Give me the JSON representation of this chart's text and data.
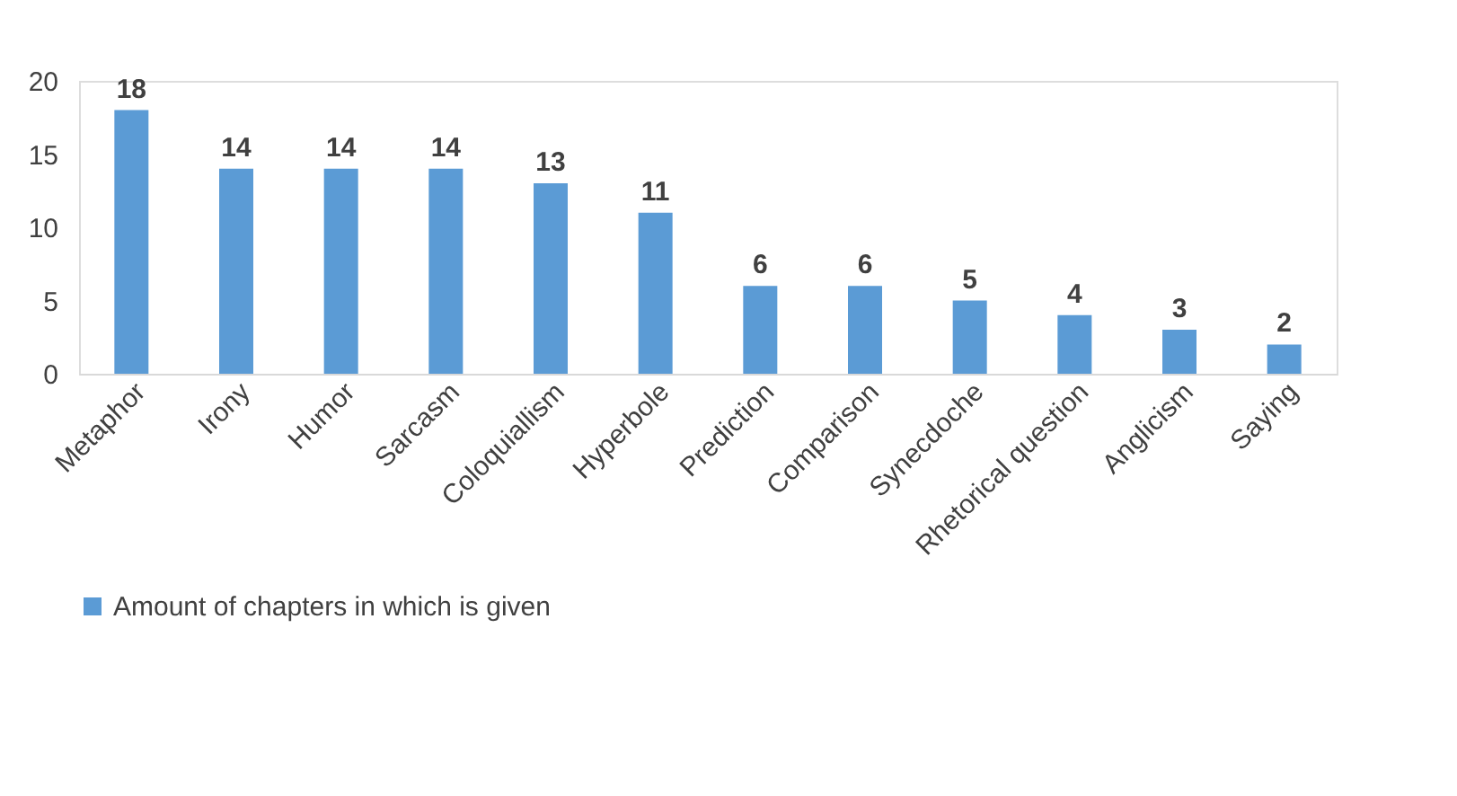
{
  "chart_data": {
    "type": "bar",
    "categories": [
      "Metaphor",
      "Irony",
      "Humor",
      "Sarcasm",
      "Coloquiallism",
      "Hyperbole",
      "Prediction",
      "Comparison",
      "Synecdoche",
      "Rhetorical question",
      "Anglicism",
      "Saying"
    ],
    "series": [
      {
        "name": "Amount of chapters in which is given",
        "color": "#5b9bd5",
        "values": [
          18,
          14,
          14,
          14,
          13,
          11,
          6,
          6,
          5,
          4,
          3,
          2
        ]
      }
    ],
    "ylim": [
      0,
      20
    ],
    "yticks": [
      0,
      5,
      10,
      15,
      20
    ],
    "data_labels": true,
    "legend": "bottom"
  }
}
